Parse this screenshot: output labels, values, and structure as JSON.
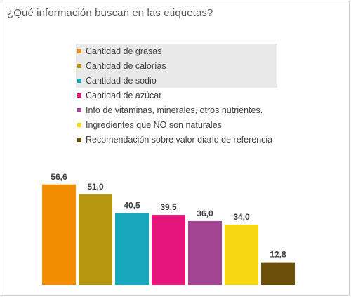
{
  "chart_data": {
    "type": "bar",
    "title": "¿Qué información buscan en las etiquetas?",
    "categories": [
      "Cantidad de grasas",
      "Cantidad de calorías",
      "Cantidad de sodio",
      "Cantidad de azúcar",
      "Info de vitaminas, minerales, otros nutrientes.",
      "Ingredientes que NO son naturales",
      "Recomendación sobre valor diario de referencia"
    ],
    "values": [
      56.6,
      51.0,
      40.5,
      39.5,
      36.0,
      34.0,
      12.8
    ],
    "value_labels": [
      "56,6",
      "51,0",
      "40,5",
      "39,5",
      "36,0",
      "34,0",
      "12,8"
    ],
    "colors": [
      "#f28c00",
      "#b7960f",
      "#17a7bd",
      "#e6157c",
      "#a14593",
      "#f7d712",
      "#6b4f0b"
    ],
    "legend_position": "top",
    "grid": false,
    "ylim": [
      0,
      60
    ]
  }
}
